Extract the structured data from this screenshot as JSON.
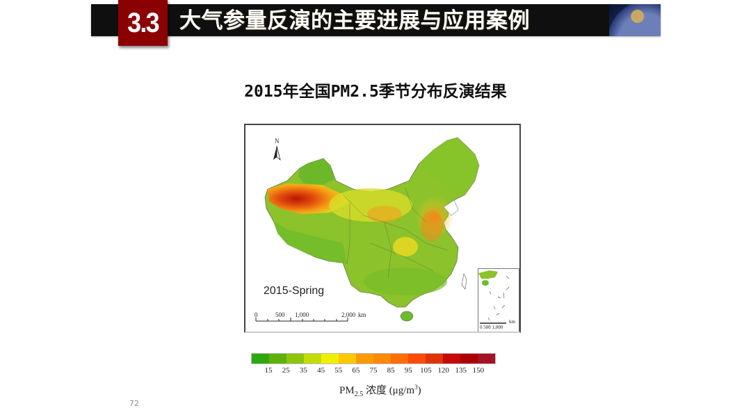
{
  "header": {
    "section_number": "3.3",
    "title": "大气参量反演的主要进展与应用案例",
    "decor_image": "space-planet-image"
  },
  "slide": {
    "heading": "2015年全国PM2.5季节分布反演结果",
    "page_number": "72"
  },
  "map": {
    "season_label": "2015-Spring",
    "north_arrow_label": "N",
    "scale_bar": {
      "labels": [
        "0",
        "500",
        "1,000",
        "2,000"
      ],
      "unit": "km"
    },
    "inset": {
      "scale_labels": "0  500 1,000",
      "unit": "km"
    }
  },
  "legend": {
    "title_prefix": "PM",
    "title_sub": "2.5",
    "title_cn": " 浓度 (μg/m",
    "title_sup": "3",
    "title_suffix": ")",
    "ticks": [
      "15",
      "25",
      "35",
      "45",
      "55",
      "65",
      "75",
      "85",
      "95",
      "105",
      "120",
      "135",
      "150"
    ],
    "colors": [
      "#2ea80f",
      "#5db20c",
      "#8cc509",
      "#c2dd05",
      "#f0ef00",
      "#fcc800",
      "#fe9a00",
      "#fd8a07",
      "#ff6e00",
      "#fe4b00",
      "#df3405",
      "#c70a08",
      "#ad0003",
      "#a31424"
    ]
  }
}
